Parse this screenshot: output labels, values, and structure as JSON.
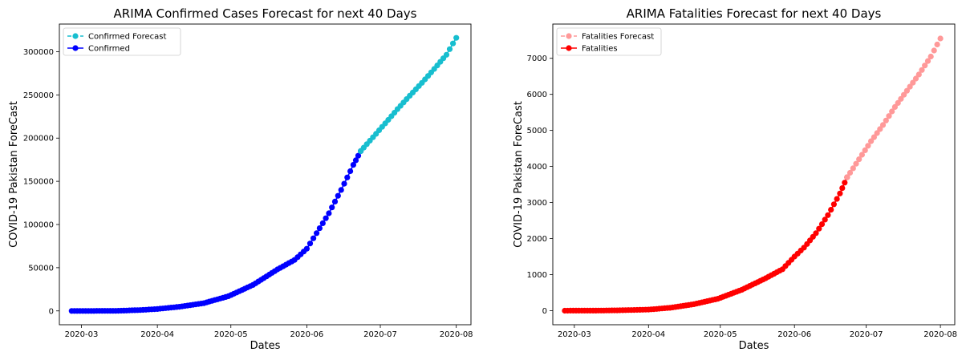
{
  "chart_data": [
    {
      "type": "line",
      "title": "ARIMA Confirmed Cases Forecast for next 40 Days",
      "xlabel": "Dates",
      "ylabel": "COVID-19 Pakistan ForeCast",
      "x_range": [
        "2020-02-21",
        "2020-08-07"
      ],
      "ylim": [
        -16000,
        332000
      ],
      "x_ticks": [
        {
          "date": "2020-03-01",
          "label": "2020-03"
        },
        {
          "date": "2020-04-01",
          "label": "2020-04"
        },
        {
          "date": "2020-05-01",
          "label": "2020-05"
        },
        {
          "date": "2020-06-01",
          "label": "2020-06"
        },
        {
          "date": "2020-07-01",
          "label": "2020-07"
        },
        {
          "date": "2020-08-01",
          "label": "2020-08"
        }
      ],
      "y_ticks": [
        0,
        50000,
        100000,
        150000,
        200000,
        250000,
        300000
      ],
      "y_tick_labels": [
        "0",
        "50000",
        "100000",
        "150000",
        "200000",
        "250000",
        "300000"
      ],
      "legend_position": "upper-left",
      "series": [
        {
          "name": "Confirmed Forecast",
          "color": "#17becf",
          "style": "dashed",
          "marker": "circle",
          "x": [
            "2020-06-23",
            "2020-06-28",
            "2020-07-03",
            "2020-07-08",
            "2020-07-13",
            "2020-07-18",
            "2020-07-23",
            "2020-07-28",
            "2020-08-01"
          ],
          "y": [
            185000,
            201000,
            217000,
            233500,
            249000,
            264000,
            280000,
            296500,
            316000
          ]
        },
        {
          "name": "Confirmed",
          "color": "#0000ff",
          "style": "solid",
          "marker": "circle",
          "x": [
            "2020-02-26",
            "2020-03-05",
            "2020-03-15",
            "2020-03-25",
            "2020-04-01",
            "2020-04-10",
            "2020-04-20",
            "2020-04-30",
            "2020-05-10",
            "2020-05-20",
            "2020-05-27",
            "2020-06-01",
            "2020-06-05",
            "2020-06-10",
            "2020-06-15",
            "2020-06-20",
            "2020-06-23"
          ],
          "y": [
            2,
            5,
            30,
            1000,
            2200,
            4800,
            9000,
            17000,
            30000,
            48000,
            59000,
            72000,
            90000,
            113000,
            140000,
            169000,
            185000
          ]
        }
      ]
    },
    {
      "type": "line",
      "title": "ARIMA Fatalities Forecast for next 40 Days",
      "xlabel": "Dates",
      "ylabel": "COVID-19 Pakistan ForeCast",
      "x_range": [
        "2020-02-21",
        "2020-08-07"
      ],
      "ylim": [
        -390,
        7950
      ],
      "x_ticks": [
        {
          "date": "2020-03-01",
          "label": "2020-03"
        },
        {
          "date": "2020-04-01",
          "label": "2020-04"
        },
        {
          "date": "2020-05-01",
          "label": "2020-05"
        },
        {
          "date": "2020-06-01",
          "label": "2020-06"
        },
        {
          "date": "2020-07-01",
          "label": "2020-07"
        },
        {
          "date": "2020-08-01",
          "label": "2020-08"
        }
      ],
      "y_ticks": [
        0,
        1000,
        2000,
        3000,
        4000,
        5000,
        6000,
        7000
      ],
      "y_tick_labels": [
        "0",
        "1000",
        "2000",
        "3000",
        "4000",
        "5000",
        "6000",
        "7000"
      ],
      "legend_position": "upper-left",
      "series": [
        {
          "name": "Fatalities Forecast",
          "color": "#ff9999",
          "style": "dashed",
          "marker": "circle",
          "x": [
            "2020-06-23",
            "2020-06-28",
            "2020-07-03",
            "2020-07-08",
            "2020-07-13",
            "2020-07-18",
            "2020-07-23",
            "2020-07-28",
            "2020-08-01"
          ],
          "y": [
            3700,
            4200,
            4700,
            5150,
            5650,
            6100,
            6550,
            7050,
            7550
          ]
        },
        {
          "name": "Fatalities",
          "color": "#ff0000",
          "style": "solid",
          "marker": "circle",
          "x": [
            "2020-02-26",
            "2020-03-10",
            "2020-03-20",
            "2020-04-01",
            "2020-04-10",
            "2020-04-20",
            "2020-04-30",
            "2020-05-10",
            "2020-05-20",
            "2020-05-27",
            "2020-06-01",
            "2020-06-05",
            "2020-06-10",
            "2020-06-15",
            "2020-06-20",
            "2020-06-23"
          ],
          "y": [
            0,
            2,
            10,
            30,
            80,
            180,
            330,
            580,
            900,
            1150,
            1500,
            1750,
            2150,
            2650,
            3250,
            3700
          ]
        }
      ]
    }
  ]
}
